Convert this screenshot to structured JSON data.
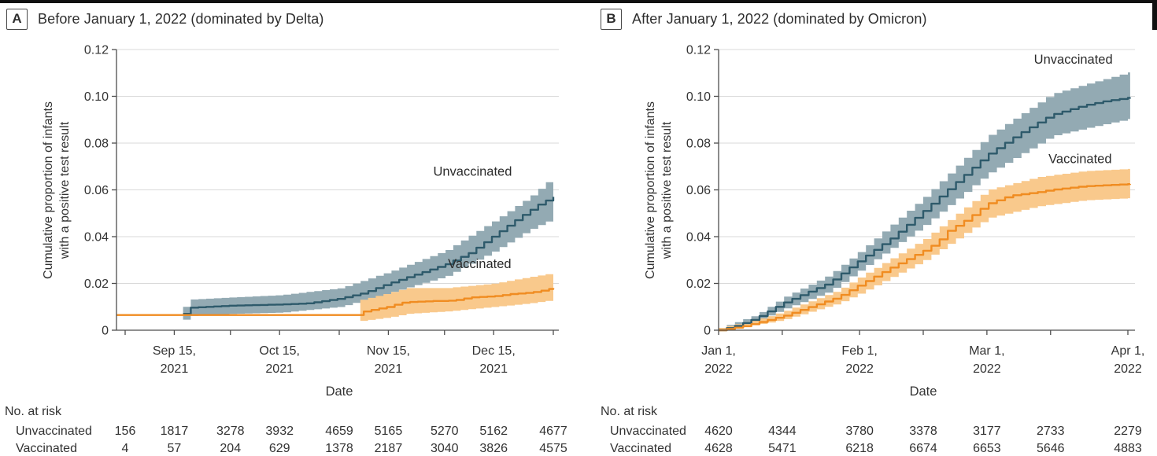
{
  "figure_type": "two-panel cumulative incidence chart",
  "chart_data": [
    {
      "type": "line",
      "panel_letter": "A",
      "panel_title": "Before January 1, 2022 (dominated by Delta)",
      "ylabel_line1": "Cumulative proportion of infants",
      "ylabel_line2": "with a positive test result",
      "xlabel": "Date",
      "ylim": [
        0,
        0.12
      ],
      "grid": "horizontal",
      "y_ticks": [
        {
          "value": 0,
          "label": "0"
        },
        {
          "value": 0.02,
          "label": "0.02"
        },
        {
          "value": 0.04,
          "label": "0.04"
        },
        {
          "value": 0.06,
          "label": "0.06"
        },
        {
          "value": 0.08,
          "label": "0.08"
        },
        {
          "value": 0.1,
          "label": "0.10"
        },
        {
          "value": 0.12,
          "label": "0.12"
        }
      ],
      "x_axis_note": "days from Sep 1, 2021; labeled ticks every month on the 15th",
      "x_ticks": [
        {
          "day": 0,
          "label": "",
          "year": ""
        },
        {
          "day": 14,
          "label": "Sep 15,",
          "year": "2021"
        },
        {
          "day": 30,
          "label": "",
          "year": ""
        },
        {
          "day": 44,
          "label": "Oct 15,",
          "year": "2021"
        },
        {
          "day": 61,
          "label": "",
          "year": ""
        },
        {
          "day": 75,
          "label": "Nov 15,",
          "year": "2021"
        },
        {
          "day": 91,
          "label": "",
          "year": ""
        },
        {
          "day": 105,
          "label": "Dec 15,",
          "year": "2021"
        },
        {
          "day": 122,
          "label": "",
          "year": ""
        }
      ],
      "series": [
        {
          "name": "Unvaccinated",
          "color": "#2e5a6b",
          "band_color": "#93aab3",
          "label_pos": {
            "day": 99,
            "value": 0.068
          },
          "line": [
            [
              16.5,
              0.007
            ],
            [
              17,
              0.0095
            ],
            [
              30,
              0.0105
            ],
            [
              44,
              0.011
            ],
            [
              52,
              0.0115
            ],
            [
              61,
              0.0135
            ],
            [
              68,
              0.016
            ],
            [
              75,
              0.02
            ],
            [
              83,
              0.024
            ],
            [
              91,
              0.028
            ],
            [
              98,
              0.033
            ],
            [
              105,
              0.0405
            ],
            [
              112,
              0.048
            ],
            [
              118,
              0.054
            ],
            [
              122,
              0.057
            ]
          ],
          "lower": [
            [
              16.5,
              0.0045
            ],
            [
              17,
              0.006
            ],
            [
              30,
              0.007
            ],
            [
              44,
              0.0075
            ],
            [
              61,
              0.01
            ],
            [
              75,
              0.016
            ],
            [
              91,
              0.023
            ],
            [
              105,
              0.034
            ],
            [
              115,
              0.043
            ],
            [
              122,
              0.048
            ]
          ],
          "upper": [
            [
              16.5,
              0.01
            ],
            [
              17,
              0.013
            ],
            [
              30,
              0.014
            ],
            [
              44,
              0.015
            ],
            [
              61,
              0.018
            ],
            [
              75,
              0.025
            ],
            [
              91,
              0.034
            ],
            [
              105,
              0.047
            ],
            [
              115,
              0.057
            ],
            [
              122,
              0.066
            ]
          ]
        },
        {
          "name": "Vaccinated",
          "color": "#f08c21",
          "band_color": "#f9c98c",
          "label_pos": {
            "day": 101,
            "value": 0.0285
          },
          "line": [
            [
              -2.4,
              0.0065
            ],
            [
              67,
              0.0065
            ],
            [
              68,
              0.008
            ],
            [
              73,
              0.0095
            ],
            [
              75,
              0.01
            ],
            [
              78,
              0.0115
            ],
            [
              80,
              0.012
            ],
            [
              88,
              0.0125
            ],
            [
              91,
              0.0125
            ],
            [
              95,
              0.013
            ],
            [
              98,
              0.014
            ],
            [
              105,
              0.0145
            ],
            [
              110,
              0.0155
            ],
            [
              115,
              0.016
            ],
            [
              119,
              0.017
            ],
            [
              122,
              0.018
            ]
          ],
          "lower": [
            [
              67,
              0.004
            ],
            [
              75,
              0.0055
            ],
            [
              80,
              0.007
            ],
            [
              91,
              0.008
            ],
            [
              105,
              0.01
            ],
            [
              115,
              0.0115
            ],
            [
              122,
              0.013
            ]
          ],
          "upper": [
            [
              67,
              0.013
            ],
            [
              75,
              0.016
            ],
            [
              80,
              0.018
            ],
            [
              91,
              0.018
            ],
            [
              98,
              0.019
            ],
            [
              105,
              0.02
            ],
            [
              112,
              0.022
            ],
            [
              118,
              0.0235
            ],
            [
              122,
              0.0245
            ]
          ]
        }
      ],
      "risk_table": {
        "header": "No. at risk",
        "rows": [
          {
            "label": "Unvaccinated",
            "values": [
              "156",
              "1817",
              "3278",
              "3932",
              "4659",
              "5165",
              "5270",
              "5162",
              "4677"
            ]
          },
          {
            "label": "Vaccinated",
            "values": [
              "4",
              "57",
              "204",
              "629",
              "1378",
              "2187",
              "3040",
              "3826",
              "4575"
            ]
          }
        ]
      }
    },
    {
      "type": "line",
      "panel_letter": "B",
      "panel_title": "After January 1, 2022 (dominated by Omicron)",
      "ylabel_line1": "Cumulative proportion of infants",
      "ylabel_line2": "with a positive test result",
      "xlabel": "Date",
      "ylim": [
        0,
        0.12
      ],
      "grid": "horizontal",
      "y_ticks": [
        {
          "value": 0,
          "label": "0"
        },
        {
          "value": 0.02,
          "label": "0.02"
        },
        {
          "value": 0.04,
          "label": "0.04"
        },
        {
          "value": 0.06,
          "label": "0.06"
        },
        {
          "value": 0.08,
          "label": "0.08"
        },
        {
          "value": 0.1,
          "label": "0.10"
        },
        {
          "value": 0.12,
          "label": "0.12"
        }
      ],
      "x_axis_note": "days from Jan 1, 2022; labeled ticks on the 1st of each month",
      "x_ticks": [
        {
          "day": 0,
          "label": "Jan 1,",
          "year": "2022"
        },
        {
          "day": 14,
          "label": "",
          "year": ""
        },
        {
          "day": 31,
          "label": "Feb 1,",
          "year": "2022"
        },
        {
          "day": 45,
          "label": "",
          "year": ""
        },
        {
          "day": 59,
          "label": "Mar 1,",
          "year": "2022"
        },
        {
          "day": 73,
          "label": "",
          "year": ""
        },
        {
          "day": 90,
          "label": "Apr 1,",
          "year": "2022"
        }
      ],
      "series": [
        {
          "name": "Unvaccinated",
          "color": "#2e5a6b",
          "band_color": "#93aab3",
          "label_pos": {
            "day": 78,
            "value": 0.116
          },
          "line": [
            [
              0,
              0
            ],
            [
              4,
              0.002
            ],
            [
              8,
              0.005
            ],
            [
              14,
              0.0115
            ],
            [
              18,
              0.015
            ],
            [
              24,
              0.02
            ],
            [
              31,
              0.03
            ],
            [
              38,
              0.0395
            ],
            [
              45,
              0.051
            ],
            [
              52,
              0.063
            ],
            [
              59,
              0.075
            ],
            [
              66,
              0.084
            ],
            [
              73,
              0.092
            ],
            [
              80,
              0.096
            ],
            [
              85,
              0.098
            ],
            [
              90.5,
              0.0995
            ]
          ],
          "lower": [
            [
              0,
              0
            ],
            [
              8,
              0.004
            ],
            [
              14,
              0.009
            ],
            [
              24,
              0.0165
            ],
            [
              31,
              0.026
            ],
            [
              45,
              0.045
            ],
            [
              59,
              0.067
            ],
            [
              73,
              0.083
            ],
            [
              82,
              0.087
            ],
            [
              90.5,
              0.0905
            ]
          ],
          "upper": [
            [
              0,
              0.001
            ],
            [
              8,
              0.0065
            ],
            [
              14,
              0.014
            ],
            [
              24,
              0.0235
            ],
            [
              31,
              0.034
            ],
            [
              45,
              0.057
            ],
            [
              59,
              0.083
            ],
            [
              73,
              0.101
            ],
            [
              82,
              0.106
            ],
            [
              90.5,
              0.1105
            ]
          ]
        },
        {
          "name": "Vaccinated",
          "color": "#f08c21",
          "band_color": "#f9c98c",
          "label_pos": {
            "day": 79.5,
            "value": 0.0735
          },
          "line": [
            [
              0,
              0
            ],
            [
              5,
              0.0015
            ],
            [
              10,
              0.004
            ],
            [
              14,
              0.006
            ],
            [
              20,
              0.01
            ],
            [
              26,
              0.014
            ],
            [
              31,
              0.0195
            ],
            [
              38,
              0.027
            ],
            [
              45,
              0.034
            ],
            [
              48,
              0.0375
            ],
            [
              50,
              0.042
            ],
            [
              55,
              0.048
            ],
            [
              59,
              0.054
            ],
            [
              64,
              0.0575
            ],
            [
              70,
              0.059
            ],
            [
              73,
              0.06
            ],
            [
              80,
              0.0615
            ],
            [
              85,
              0.062
            ],
            [
              90.5,
              0.0625
            ]
          ],
          "lower": [
            [
              0,
              0
            ],
            [
              10,
              0.003
            ],
            [
              14,
              0.0045
            ],
            [
              26,
              0.0115
            ],
            [
              31,
              0.016
            ],
            [
              45,
              0.03
            ],
            [
              59,
              0.048
            ],
            [
              70,
              0.053
            ],
            [
              80,
              0.0555
            ],
            [
              90.5,
              0.0565
            ]
          ],
          "upper": [
            [
              0,
              0.001
            ],
            [
              10,
              0.0055
            ],
            [
              14,
              0.008
            ],
            [
              26,
              0.017
            ],
            [
              31,
              0.023
            ],
            [
              45,
              0.039
            ],
            [
              59,
              0.06
            ],
            [
              70,
              0.0655
            ],
            [
              80,
              0.068
            ],
            [
              90.5,
              0.069
            ]
          ]
        }
      ],
      "risk_table": {
        "header": "No. at risk",
        "rows": [
          {
            "label": "Unvaccinated",
            "values": [
              "4620",
              "4344",
              "3780",
              "3378",
              "3177",
              "2733",
              "2279"
            ]
          },
          {
            "label": "Vaccinated",
            "values": [
              "4628",
              "5471",
              "6218",
              "6674",
              "6653",
              "5646",
              "4883"
            ]
          }
        ]
      }
    }
  ],
  "colors": {
    "unvaccinated_line": "#2e5a6b",
    "unvaccinated_band": "#93aab3",
    "vaccinated_line": "#f08c21",
    "vaccinated_band": "#f9c98c",
    "gridline": "#d9d9d9",
    "axis": "#4d4d4d",
    "text": "#333333",
    "top_bar": "#101010"
  }
}
